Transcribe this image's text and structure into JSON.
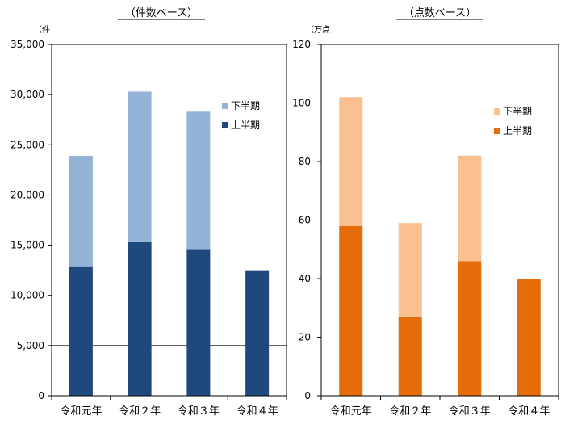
{
  "chart_data": [
    {
      "type": "bar",
      "stacked": true,
      "title": "（件数ベース）",
      "unit_label": "（件",
      "categories": [
        "令和元年",
        "令和２年",
        "令和３年",
        "令和４年"
      ],
      "ylim": [
        0,
        35000
      ],
      "yticks": [
        0,
        5000,
        10000,
        15000,
        20000,
        25000,
        30000,
        35000
      ],
      "ytick_labels": [
        "0",
        "5,000",
        "10,000",
        "15,000",
        "20,000",
        "25,000",
        "30,000",
        "35,000"
      ],
      "gridlines": [
        5000
      ],
      "legend_position": "right, upper half of plot",
      "series": [
        {
          "name": "上半期",
          "color": "#1f497d",
          "values": [
            12900,
            15300,
            14600,
            12500
          ]
        },
        {
          "name": "下半期",
          "color": "#95b3d7",
          "values": [
            11000,
            15000,
            13700,
            0
          ]
        }
      ]
    },
    {
      "type": "bar",
      "stacked": true,
      "title": "（点数ベース）",
      "unit_label": "（万点",
      "categories": [
        "令和元年",
        "令和２年",
        "令和３年",
        "令和４年"
      ],
      "ylim": [
        0,
        120
      ],
      "yticks": [
        0,
        20,
        40,
        60,
        80,
        100,
        120
      ],
      "ytick_labels": [
        "0",
        "20",
        "40",
        "60",
        "80",
        "100",
        "120"
      ],
      "gridlines": [],
      "legend_position": "right, upper half of plot",
      "series": [
        {
          "name": "上半期",
          "color": "#e46c0a",
          "values": [
            58,
            27,
            46,
            40
          ]
        },
        {
          "name": "下半期",
          "color": "#fac090",
          "values": [
            44,
            32,
            36,
            0
          ]
        }
      ]
    }
  ]
}
